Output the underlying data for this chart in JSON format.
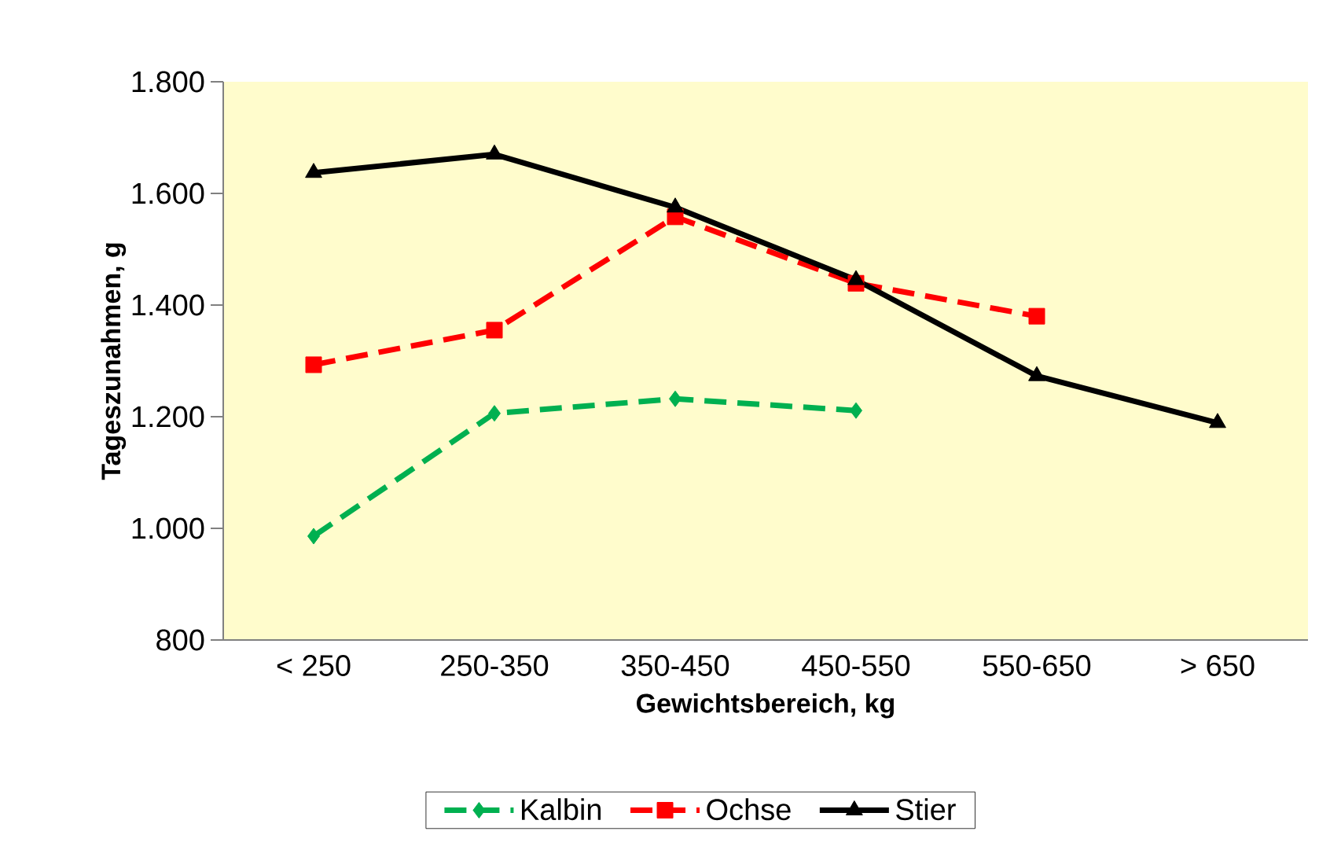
{
  "chart_data": {
    "type": "line",
    "xlabel": "Gewichtsbereich, kg",
    "ylabel": "Tageszunahmen, g",
    "categories": [
      "< 250",
      "250-350",
      "350-450",
      "450-550",
      "550-650",
      "> 650"
    ],
    "series": [
      {
        "name": "Kalbin",
        "color": "#00b050",
        "marker": "diamond",
        "line_style": "dashed",
        "values": [
          986,
          1206,
          1232,
          1211,
          null,
          null
        ]
      },
      {
        "name": "Ochse",
        "color": "#ff0000",
        "marker": "square",
        "line_style": "dashed",
        "values": [
          1293,
          1355,
          1558,
          1439,
          1380,
          null
        ]
      },
      {
        "name": "Stier",
        "color": "#000000",
        "marker": "triangle",
        "line_style": "solid",
        "values": [
          1637,
          1670,
          1575,
          1445,
          1273,
          1189
        ]
      }
    ],
    "ylim": [
      800,
      1800
    ],
    "yticks": [
      800,
      {
        "value": 1000,
        "label": "1.000"
      },
      {
        "value": 1200,
        "label": "1.200"
      },
      {
        "value": 1400,
        "label": "1.400"
      },
      {
        "value": 1600,
        "label": "1.600"
      },
      {
        "value": 1800,
        "label": "1.800"
      }
    ],
    "grid": false,
    "legend": "bottom"
  }
}
